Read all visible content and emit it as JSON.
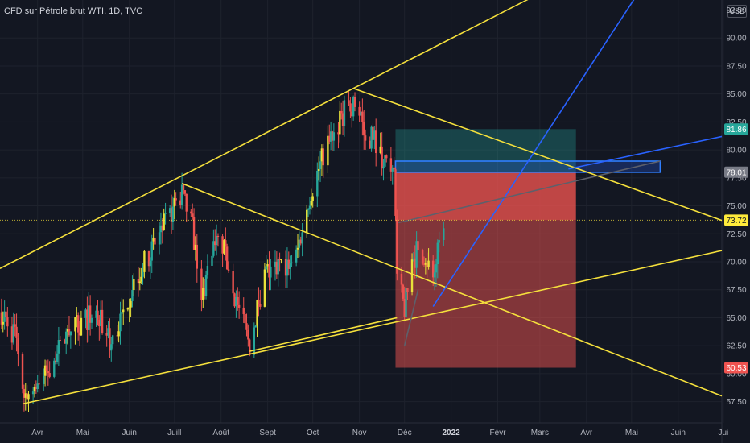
{
  "header": {
    "title": "CFD sur Pétrole brut WTI, 1D, TVC",
    "currency": "USD"
  },
  "colors": {
    "background": "#131722",
    "up": "#26a69a",
    "up_alt": "#e8e23a",
    "down": "#ef5350",
    "trendline": "#f5e03c",
    "blue_line": "#2962ff",
    "current_price": "#ffeb3b",
    "target": "#26a69a",
    "stop": "#ef5350"
  },
  "chart_data": {
    "type": "candlestick",
    "x_axis": {
      "type": "date",
      "range": [
        "2021-03-07",
        "2022-06-30"
      ],
      "ticks": [
        {
          "date": "2021-04-01",
          "label": "Avr"
        },
        {
          "date": "2021-05-01",
          "label": "Mai"
        },
        {
          "date": "2021-06-01",
          "label": "Juin"
        },
        {
          "date": "2021-07-01",
          "label": "Juill"
        },
        {
          "date": "2021-08-01",
          "label": "Août"
        },
        {
          "date": "2021-09-01",
          "label": "Sept"
        },
        {
          "date": "2021-10-01",
          "label": "Oct"
        },
        {
          "date": "2021-11-01",
          "label": "Nov"
        },
        {
          "date": "2021-12-01",
          "label": "Déc"
        },
        {
          "date": "2022-01-01",
          "label": "2022",
          "bold": true
        },
        {
          "date": "2022-02-01",
          "label": "Févr"
        },
        {
          "date": "2022-03-01",
          "label": "Mars"
        },
        {
          "date": "2022-04-01",
          "label": "Avr"
        },
        {
          "date": "2022-05-01",
          "label": "Mai"
        },
        {
          "date": "2022-06-01",
          "label": "Juin"
        },
        {
          "date": "2022-07-01",
          "label": "Jui"
        }
      ]
    },
    "y_axis": {
      "range": [
        55.6,
        93.4
      ],
      "ticks": [
        57.5,
        60.0,
        62.5,
        65.0,
        67.5,
        70.0,
        72.5,
        75.0,
        77.5,
        80.0,
        82.5,
        85.0,
        87.5,
        90.0,
        92.5
      ],
      "tick_labels": [
        "57.50",
        "60.00",
        "62.50",
        "65.00",
        "67.50",
        "70.00",
        "72.50",
        "75.00",
        "77.50",
        "80.00",
        "82.50",
        "85.00",
        "87.50",
        "90.00",
        "92.50"
      ]
    },
    "price_anchors": [
      [
        "2021-03-08",
        65.5
      ],
      [
        "2021-03-18",
        63.0
      ],
      [
        "2021-03-23",
        58.0
      ],
      [
        "2021-04-05",
        59.5
      ],
      [
        "2021-04-20",
        63.5
      ],
      [
        "2021-05-10",
        65.5
      ],
      [
        "2021-05-20",
        62.5
      ],
      [
        "2021-06-01",
        67.0
      ],
      [
        "2021-06-15",
        71.0
      ],
      [
        "2021-06-25",
        73.5
      ],
      [
        "2021-07-06",
        76.0
      ],
      [
        "2021-07-13",
        73.0
      ],
      [
        "2021-07-19",
        66.5
      ],
      [
        "2021-07-26",
        71.5
      ],
      [
        "2021-08-02",
        71.5
      ],
      [
        "2021-08-10",
        67.0
      ],
      [
        "2021-08-20",
        62.5
      ],
      [
        "2021-08-30",
        69.0
      ],
      [
        "2021-09-10",
        69.5
      ],
      [
        "2021-09-20",
        70.5
      ],
      [
        "2021-09-28",
        75.5
      ],
      [
        "2021-10-08",
        79.5
      ],
      [
        "2021-10-20",
        83.0
      ],
      [
        "2021-10-25",
        84.0
      ],
      [
        "2021-11-01",
        84.0
      ],
      [
        "2021-11-05",
        80.5
      ],
      [
        "2021-11-10",
        81.5
      ],
      [
        "2021-11-17",
        79.0
      ],
      [
        "2021-11-24",
        78.0
      ],
      [
        "2021-11-26",
        68.5
      ],
      [
        "2021-12-01",
        65.8
      ],
      [
        "2021-12-06",
        69.5
      ],
      [
        "2021-12-10",
        71.5
      ],
      [
        "2021-12-15",
        70.5
      ],
      [
        "2021-12-20",
        68.5
      ],
      [
        "2021-12-27",
        73.7
      ]
    ],
    "current_price": {
      "value": 73.72,
      "label": "73.72"
    },
    "position": {
      "type": "short",
      "start": "2021-11-25",
      "end": "2022-03-25",
      "entry": 78.01,
      "target": 60.53,
      "stop": 81.86,
      "entry_label": "78.01",
      "target_label": "60.53",
      "stop_label": "81.86"
    },
    "rectangle": {
      "start": "2021-11-25",
      "end": "2022-05-20",
      "top": 79.0,
      "bottom": 78.0
    },
    "trendlines": [
      {
        "points": [
          [
            "2021-03-07",
            69.4
          ],
          [
            "2021-10-28",
            85.5
          ]
        ],
        "extend": "right",
        "color": "#f5e03c"
      },
      {
        "points": [
          [
            "2021-03-22",
            57.3
          ],
          [
            "2022-06-30",
            71.0
          ]
        ],
        "extend": "none",
        "color": "#f5e03c"
      },
      {
        "points": [
          [
            "2021-07-06",
            77.0
          ],
          [
            "2022-06-30",
            58.0
          ]
        ],
        "extend": "none",
        "color": "#f5e03c"
      },
      {
        "points": [
          [
            "2021-10-28",
            85.5
          ],
          [
            "2022-06-30",
            73.7
          ]
        ],
        "extend": "none",
        "color": "#f5e03c"
      },
      {
        "points": [
          [
            "2021-08-20",
            62.0
          ],
          [
            "2021-11-26",
            65.0
          ]
        ],
        "extend": "none",
        "color": "#f5e03c"
      },
      {
        "points": [
          [
            "2021-12-20",
            66.0
          ],
          [
            "2022-05-15",
            96.0
          ]
        ],
        "extend": "none",
        "color": "#2962ff"
      },
      {
        "points": [
          [
            "2022-03-20",
            78.3
          ],
          [
            "2022-06-30",
            81.2
          ]
        ],
        "extend": "none",
        "color": "#2962ff"
      },
      {
        "points": [
          [
            "2021-11-27",
            73.5
          ],
          [
            "2022-05-20",
            79.0
          ]
        ],
        "extend": "none",
        "color": "#5d606b"
      },
      {
        "points": [
          [
            "2021-12-01",
            62.5
          ],
          [
            "2021-12-10",
            67.5
          ]
        ],
        "extend": "none",
        "color": "#5d606b"
      }
    ]
  }
}
